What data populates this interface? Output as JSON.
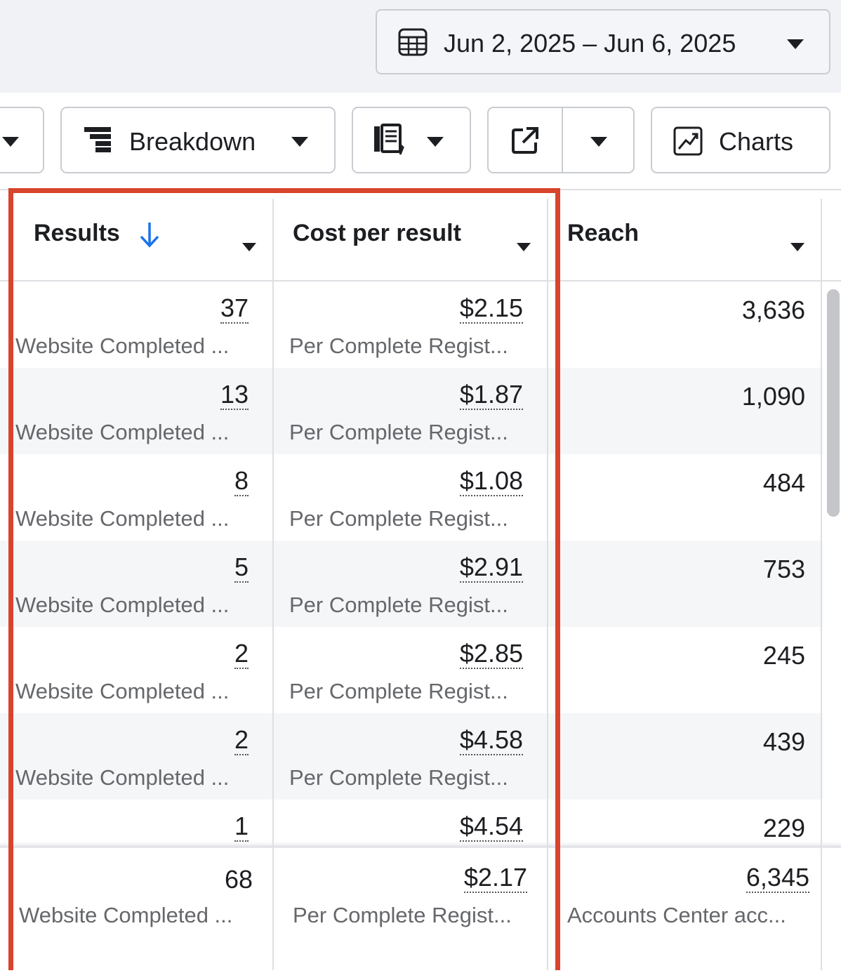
{
  "date_range": {
    "label": "Jun 2, 2025 – Jun 6, 2025"
  },
  "toolbar": {
    "breakdown_label": "Breakdown",
    "charts_label": "Charts"
  },
  "columns": {
    "results": "Results",
    "cost_per_result": "Cost per result",
    "reach": "Reach"
  },
  "rows": [
    {
      "results": "37",
      "results_sub": "Website Completed ...",
      "cost": "$2.15",
      "cost_sub": "Per Complete Regist...",
      "reach": "3,636"
    },
    {
      "results": "13",
      "results_sub": "Website Completed ...",
      "cost": "$1.87",
      "cost_sub": "Per Complete Regist...",
      "reach": "1,090"
    },
    {
      "results": "8",
      "results_sub": "Website Completed ...",
      "cost": "$1.08",
      "cost_sub": "Per Complete Regist...",
      "reach": "484"
    },
    {
      "results": "5",
      "results_sub": "Website Completed ...",
      "cost": "$2.91",
      "cost_sub": "Per Complete Regist...",
      "reach": "753"
    },
    {
      "results": "2",
      "results_sub": "Website Completed ...",
      "cost": "$2.85",
      "cost_sub": "Per Complete Regist...",
      "reach": "245"
    },
    {
      "results": "2",
      "results_sub": "Website Completed ...",
      "cost": "$4.58",
      "cost_sub": "Per Complete Regist...",
      "reach": "439"
    },
    {
      "results": "1",
      "results_sub": "",
      "cost": "$4.54",
      "cost_sub": "",
      "reach": "229"
    }
  ],
  "summary": {
    "results": "68",
    "results_sub": "Website Completed ...",
    "cost": "$2.17",
    "cost_sub": "Per Complete Regist...",
    "reach": "6,345",
    "reach_sub": "Accounts Center acc..."
  },
  "colors": {
    "highlight": "#d9442d",
    "sort_arrow": "#1a73e8"
  },
  "icons": [
    "calendar-icon",
    "caret-down-icon",
    "breakdown-icon",
    "report-icon",
    "export-icon",
    "charts-icon",
    "sort-down-arrow-icon"
  ]
}
